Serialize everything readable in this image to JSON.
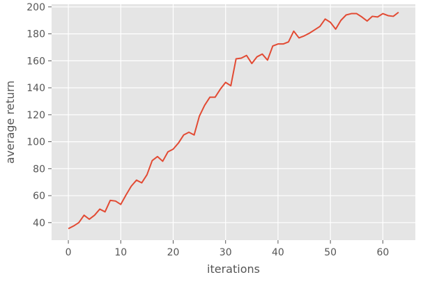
{
  "chart_data": {
    "type": "line",
    "title": "",
    "xlabel": "iterations",
    "ylabel": "average return",
    "xlim": [
      -3.2,
      66.2
    ],
    "ylim": [
      27,
      202
    ],
    "xticks": [
      0,
      10,
      20,
      30,
      40,
      50,
      60
    ],
    "yticks": [
      40,
      60,
      80,
      100,
      120,
      140,
      160,
      180,
      200
    ],
    "grid": true,
    "background_color": "#e5e5e5",
    "grid_color": "#ffffff",
    "line_color": "#e24a33",
    "series": [
      {
        "x": [
          0,
          1,
          2,
          3,
          4,
          5,
          6,
          7,
          8,
          9,
          10,
          11,
          12,
          13,
          14,
          15,
          16,
          17,
          18,
          19,
          20,
          21,
          22,
          23,
          24,
          25,
          26,
          27,
          28,
          29,
          30,
          31,
          32,
          33,
          34,
          35,
          36,
          37,
          38,
          39,
          40,
          41,
          42,
          43,
          44,
          45,
          46,
          47,
          48,
          49,
          50,
          51,
          52,
          53,
          54,
          55,
          56,
          57,
          58,
          59,
          60,
          61,
          62,
          63
        ],
        "values": [
          35.5,
          37.5,
          40,
          45.5,
          42.5,
          45.5,
          50,
          48,
          56.5,
          56,
          53.5,
          60.5,
          67,
          71.5,
          69.5,
          75.5,
          86,
          89,
          85.5,
          92.5,
          94.5,
          99,
          105,
          107,
          105,
          119,
          127,
          133,
          133,
          139,
          144,
          141.5,
          161.5,
          162,
          164,
          158,
          163,
          165,
          160.5,
          171,
          172.5,
          172.5,
          174,
          182,
          177,
          178.5,
          180.5,
          183,
          185.5,
          191,
          188.5,
          183.5,
          190,
          194,
          195,
          195,
          192.5,
          189.5,
          193,
          192.5,
          195,
          193.5,
          193,
          196
        ]
      }
    ]
  }
}
